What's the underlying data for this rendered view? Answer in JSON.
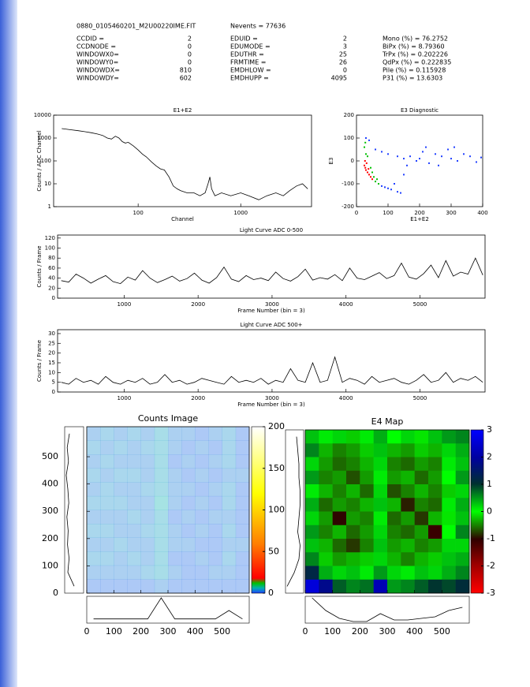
{
  "header": {
    "file": "0880_0105460201_M2U00220IME.FIT",
    "nevents": "Nevents = 77636",
    "rows": [
      [
        "CCDID =",
        "2",
        "EDUID =",
        "2",
        "Mono (%) = 76.2752"
      ],
      [
        "CCDNODE =",
        "0",
        "EDUMODE =",
        "3",
        "BiPx (%) = 8.79360"
      ],
      [
        "WINDOWX0=",
        "0",
        "EDUTHR =",
        "25",
        "TrPx (%) = 0.202226"
      ],
      [
        "WINDOWY0=",
        "0",
        "FRMTIME =",
        "26",
        "QdPx (%) = 0.222835"
      ],
      [
        "WINDOWDX=",
        "810",
        "EMDHLOW =",
        "0",
        "Pile (%) = 0.115928"
      ],
      [
        "WINDOWDY=",
        "602",
        "EMDHUPP =",
        "4095",
        "P31 (%) = 13.6303"
      ]
    ]
  },
  "chart_data": [
    {
      "type": "line",
      "title": "E1+E2",
      "xlabel": "Channel",
      "ylabel": "Counts / ADC Channel",
      "xlog": true,
      "ylog": true,
      "xlim": [
        15,
        4900
      ],
      "ylim": [
        1,
        10000
      ],
      "xticks": [
        100,
        1000
      ],
      "yticks": [
        1,
        10,
        100,
        1000,
        10000
      ],
      "color": "#000000",
      "x": [
        18,
        22,
        26,
        30,
        35,
        40,
        45,
        50,
        55,
        60,
        65,
        70,
        75,
        80,
        90,
        100,
        110,
        120,
        135,
        150,
        165,
        180,
        200,
        220,
        240,
        260,
        300,
        350,
        400,
        450,
        480,
        500,
        520,
        560,
        650,
        800,
        1000,
        1200,
        1500,
        1800,
        2200,
        2600,
        3000,
        3500,
        4000,
        4500
      ],
      "values": [
        2600,
        2300,
        2100,
        1900,
        1700,
        1500,
        1300,
        1000,
        900,
        1200,
        1000,
        700,
        600,
        650,
        450,
        300,
        200,
        150,
        90,
        60,
        45,
        40,
        20,
        8,
        6,
        5,
        4,
        4,
        3,
        4,
        10,
        20,
        6,
        3,
        4,
        3,
        4,
        3,
        2,
        3,
        4,
        3,
        5,
        8,
        10,
        6
      ]
    },
    {
      "type": "scatter",
      "title": "E3 Diagnostic",
      "xlabel": "E1+E2",
      "ylabel": "E3",
      "xlim": [
        0,
        400
      ],
      "ylim": [
        -200,
        200
      ],
      "xticks": [
        0,
        100,
        200,
        300,
        400
      ],
      "yticks": [
        -200,
        -100,
        0,
        100,
        200
      ],
      "x": [
        25,
        30,
        35,
        28,
        40,
        45,
        32,
        38,
        50,
        27,
        30,
        25,
        45,
        55,
        60,
        35,
        70,
        50,
        65,
        28,
        80,
        90,
        100,
        110,
        130,
        140,
        120,
        60,
        80,
        100,
        130,
        150,
        170,
        190,
        210,
        230,
        250,
        270,
        290,
        300,
        320,
        340,
        360,
        380,
        395,
        220,
        260,
        310,
        200,
        160,
        30,
        40,
        150
      ],
      "values": [
        -20,
        -40,
        -50,
        -30,
        -60,
        -70,
        -10,
        -35,
        -80,
        0,
        30,
        60,
        -30,
        -70,
        -90,
        20,
        -100,
        -50,
        -80,
        80,
        -110,
        -115,
        -120,
        -125,
        -135,
        -140,
        -100,
        50,
        40,
        30,
        20,
        10,
        20,
        0,
        40,
        -10,
        30,
        20,
        50,
        10,
        0,
        30,
        20,
        -5,
        15,
        60,
        -20,
        60,
        10,
        -20,
        100,
        90,
        -60
      ],
      "colors": [
        "#ff0000",
        "#ff0000",
        "#ff0000",
        "#ff0000",
        "#ff0000",
        "#ff0000",
        "#ff0000",
        "#ff0000",
        "#ff0000",
        "#ff0000",
        "#00c000",
        "#00c000",
        "#00c000",
        "#00c000",
        "#00c000",
        "#00c000",
        "#00c000",
        "#00c000",
        "#00c000",
        "#00c000",
        "#2040ff",
        "#2040ff",
        "#2040ff",
        "#2040ff",
        "#2040ff",
        "#2040ff",
        "#2040ff",
        "#2040ff",
        "#2040ff",
        "#2040ff",
        "#2040ff",
        "#2040ff",
        "#2040ff",
        "#2040ff",
        "#2040ff",
        "#2040ff",
        "#2040ff",
        "#2040ff",
        "#2040ff",
        "#2040ff",
        "#2040ff",
        "#2040ff",
        "#2040ff",
        "#2040ff",
        "#2040ff",
        "#2040ff",
        "#2040ff",
        "#2040ff",
        "#2040ff",
        "#2040ff",
        "#2040ff",
        "#2040ff",
        "#2040ff"
      ]
    },
    {
      "type": "line",
      "title": "Light Curve ADC 0-500",
      "xlabel": "Frame Number (bin = 3)",
      "ylabel": "Counts / Frame",
      "xlim": [
        100,
        5880
      ],
      "ylim": [
        0,
        126
      ],
      "xticks": [
        1000,
        2000,
        3000,
        4000,
        5000
      ],
      "yticks": [
        0,
        20,
        40,
        60,
        80,
        100,
        120
      ],
      "color": "#000000",
      "x": [
        150,
        250,
        350,
        450,
        550,
        650,
        750,
        850,
        950,
        1050,
        1150,
        1250,
        1350,
        1450,
        1550,
        1650,
        1750,
        1850,
        1950,
        2050,
        2150,
        2250,
        2350,
        2450,
        2550,
        2650,
        2750,
        2850,
        2950,
        3050,
        3150,
        3250,
        3350,
        3450,
        3550,
        3650,
        3750,
        3850,
        3950,
        4050,
        4150,
        4250,
        4350,
        4450,
        4550,
        4650,
        4750,
        4850,
        4950,
        5050,
        5150,
        5250,
        5350,
        5450,
        5550,
        5650,
        5750,
        5850
      ],
      "values": [
        35,
        32,
        48,
        40,
        30,
        38,
        45,
        33,
        29,
        42,
        36,
        55,
        40,
        31,
        37,
        44,
        34,
        39,
        50,
        36,
        30,
        41,
        62,
        38,
        33,
        45,
        37,
        40,
        35,
        52,
        39,
        34,
        43,
        58,
        36,
        41,
        38,
        47,
        35,
        60,
        40,
        37,
        44,
        51,
        39,
        45,
        70,
        42,
        38,
        49,
        66,
        41,
        75,
        44,
        52,
        48,
        80,
        46
      ]
    },
    {
      "type": "line",
      "title": "Light Curve ADC 500+",
      "xlabel": "Frame Number (bin = 3)",
      "ylabel": "Counts / Frame",
      "xlim": [
        100,
        5880
      ],
      "ylim": [
        0,
        32
      ],
      "xticks": [
        1000,
        2000,
        3000,
        4000,
        5000
      ],
      "yticks": [
        0,
        5,
        10,
        15,
        20,
        25,
        30
      ],
      "color": "#000000",
      "x": [
        150,
        250,
        350,
        450,
        550,
        650,
        750,
        850,
        950,
        1050,
        1150,
        1250,
        1350,
        1450,
        1550,
        1650,
        1750,
        1850,
        1950,
        2050,
        2150,
        2250,
        2350,
        2450,
        2550,
        2650,
        2750,
        2850,
        2950,
        3050,
        3150,
        3250,
        3350,
        3450,
        3550,
        3650,
        3750,
        3850,
        3950,
        4050,
        4150,
        4250,
        4350,
        4450,
        4550,
        4650,
        4750,
        4850,
        4950,
        5050,
        5150,
        5250,
        5350,
        5450,
        5550,
        5650,
        5750,
        5850
      ],
      "values": [
        5,
        4,
        7,
        5,
        6,
        4,
        8,
        5,
        4,
        6,
        5,
        7,
        4,
        5,
        9,
        5,
        6,
        4,
        5,
        7,
        6,
        5,
        4,
        8,
        5,
        6,
        5,
        7,
        4,
        6,
        5,
        12,
        6,
        5,
        15,
        5,
        6,
        18,
        5,
        7,
        6,
        4,
        8,
        5,
        6,
        7,
        5,
        4,
        6,
        9,
        5,
        6,
        10,
        5,
        7,
        6,
        8,
        5
      ]
    },
    {
      "type": "heatmap",
      "title": "Counts Image",
      "xlim": [
        0,
        600
      ],
      "ylim": [
        0,
        610
      ],
      "xticks": [
        0,
        100,
        200,
        300,
        400,
        500
      ],
      "yticks": [
        0,
        100,
        200,
        300,
        400,
        500
      ],
      "clim": [
        0,
        200
      ],
      "cticks": [
        0,
        50,
        100,
        150,
        200
      ],
      "colorscale": [
        [
          0,
          "#2040ff"
        ],
        [
          0.03,
          "#00b0b0"
        ],
        [
          0.06,
          "#00c000"
        ],
        [
          0.09,
          "#ff0000"
        ],
        [
          0.3,
          "#ff8000"
        ],
        [
          0.6,
          "#ffff00"
        ],
        [
          1,
          "#ffffff"
        ]
      ],
      "z": [
        [
          3,
          4,
          3,
          4,
          3,
          5,
          3,
          3,
          2,
          3,
          4,
          2
        ],
        [
          4,
          3,
          4,
          3,
          4,
          5,
          3,
          2,
          3,
          2,
          4,
          2
        ],
        [
          3,
          4,
          3,
          3,
          3,
          5,
          2,
          3,
          2,
          3,
          4,
          2
        ],
        [
          4,
          3,
          4,
          4,
          3,
          5,
          3,
          2,
          3,
          2,
          3,
          3
        ],
        [
          3,
          4,
          3,
          3,
          4,
          5,
          3,
          3,
          2,
          3,
          4,
          2
        ],
        [
          4,
          4,
          4,
          3,
          3,
          6,
          3,
          2,
          3,
          2,
          4,
          2
        ],
        [
          3,
          3,
          3,
          4,
          3,
          5,
          2,
          3,
          2,
          3,
          3,
          2
        ],
        [
          4,
          4,
          3,
          3,
          4,
          5,
          3,
          2,
          3,
          2,
          4,
          2
        ],
        [
          3,
          3,
          4,
          3,
          3,
          5,
          3,
          3,
          2,
          2,
          3,
          3
        ],
        [
          4,
          4,
          3,
          4,
          3,
          5,
          2,
          2,
          3,
          2,
          4,
          2
        ],
        [
          3,
          3,
          3,
          3,
          4,
          5,
          3,
          2,
          2,
          3,
          3,
          2
        ],
        [
          2,
          2,
          2,
          2,
          2,
          3,
          2,
          2,
          2,
          2,
          2,
          2
        ]
      ],
      "y_profile": [
        45,
        52,
        48,
        55,
        50,
        47,
        53,
        49,
        51,
        46,
        50,
        30
      ],
      "x_profile": [
        10,
        10,
        10,
        10,
        10,
        60,
        10,
        10,
        10,
        10,
        30,
        10
      ]
    },
    {
      "type": "heatmap",
      "title": "E4 Map",
      "xlim": [
        0,
        600
      ],
      "ylim": [
        0,
        610
      ],
      "xticks": [
        0,
        100,
        200,
        300,
        400,
        500
      ],
      "clim": [
        -3,
        3
      ],
      "cticks": [
        -3,
        -2,
        -1,
        0,
        1,
        2,
        3
      ],
      "colorscale": [
        [
          0,
          "#ff0000"
        ],
        [
          0.17,
          "#a00000"
        ],
        [
          0.33,
          "#300000"
        ],
        [
          0.5,
          "#00ff00"
        ],
        [
          0.67,
          "#003030"
        ],
        [
          0.83,
          "#0000a0"
        ],
        [
          1,
          "#0000ff"
        ]
      ],
      "z": [
        [
          0.3,
          0.1,
          0.2,
          -0.2,
          0.1,
          0.4,
          0.0,
          0.2,
          -0.1,
          0.3,
          0.5,
          0.6
        ],
        [
          0.6,
          -0.3,
          -0.5,
          -0.4,
          -0.2,
          0.3,
          -0.3,
          -0.4,
          -0.2,
          -0.3,
          0.2,
          0.4
        ],
        [
          0.2,
          -0.4,
          -0.6,
          -0.5,
          -0.3,
          0.2,
          -0.5,
          -0.6,
          -0.4,
          -0.5,
          0.1,
          0.3
        ],
        [
          0.5,
          -0.5,
          -0.4,
          -0.7,
          -0.4,
          0.1,
          -0.4,
          -0.3,
          -0.6,
          -0.4,
          0.0,
          0.5
        ],
        [
          0.1,
          -0.3,
          -0.5,
          -0.3,
          -0.6,
          0.2,
          -0.7,
          -0.5,
          -0.3,
          -0.5,
          -0.2,
          0.2
        ],
        [
          0.4,
          -0.6,
          -0.4,
          -0.5,
          -0.3,
          0.3,
          -0.3,
          -0.9,
          -0.5,
          -0.6,
          0.1,
          0.4
        ],
        [
          0.2,
          -0.4,
          -1.0,
          -0.4,
          -0.5,
          0.1,
          -0.6,
          -0.4,
          -0.8,
          -0.3,
          -0.1,
          0.3
        ],
        [
          0.5,
          -0.5,
          -0.3,
          -0.6,
          -0.4,
          0.2,
          -0.5,
          -0.6,
          -0.4,
          -1.1,
          0.0,
          0.6
        ],
        [
          0.3,
          -0.3,
          -0.6,
          -0.8,
          -0.5,
          0.3,
          -0.4,
          -0.3,
          -0.5,
          -0.4,
          0.2,
          0.2
        ],
        [
          0.6,
          -0.2,
          -0.4,
          -0.3,
          -0.2,
          0.2,
          -0.3,
          -0.5,
          -0.3,
          -0.2,
          0.3,
          0.4
        ],
        [
          1.2,
          0.4,
          0.2,
          0.3,
          0.1,
          0.5,
          0.2,
          0.1,
          0.3,
          0.2,
          0.4,
          0.6
        ],
        [
          2.6,
          1.8,
          0.8,
          0.6,
          0.7,
          2.2,
          0.5,
          0.6,
          0.8,
          1.0,
          0.9,
          1.1
        ]
      ],
      "y_profile": [
        0.6,
        0.5,
        0.4,
        0.4,
        0.3,
        0.3,
        0.4,
        0.5,
        0.3,
        0.4,
        0.8,
        1.4
      ],
      "x_profile": [
        1.6,
        0.8,
        0.3,
        0.1,
        0.1,
        0.6,
        0.2,
        0.2,
        0.3,
        0.4,
        0.8,
        1.0
      ]
    }
  ]
}
